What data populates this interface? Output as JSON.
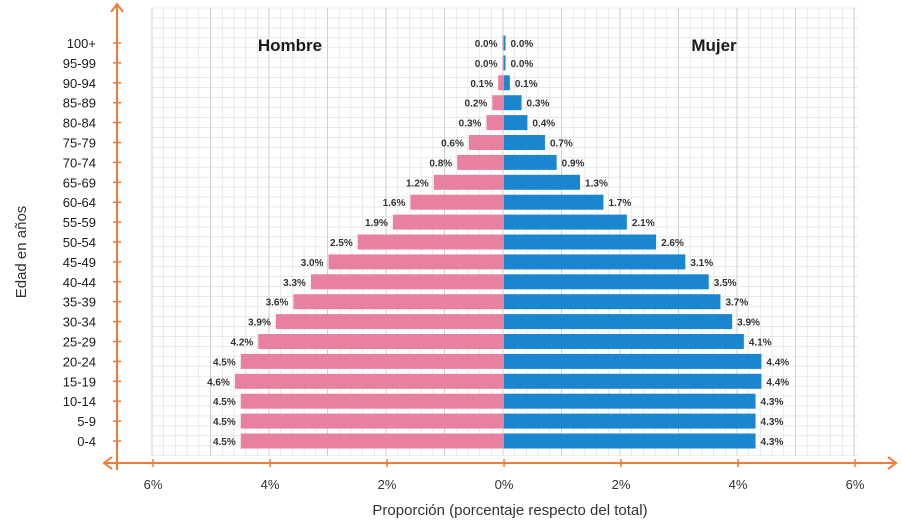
{
  "chart_data": {
    "type": "bar",
    "orientation": "horizontal",
    "layout": "population-pyramid",
    "categories": [
      "100+",
      "95-99",
      "90-94",
      "85-89",
      "80-84",
      "75-79",
      "70-74",
      "65-69",
      "60-64",
      "55-59",
      "50-54",
      "45-49",
      "40-44",
      "35-39",
      "30-34",
      "25-29",
      "20-24",
      "15-19",
      "10-14",
      "5-9",
      "0-4"
    ],
    "series": [
      {
        "name": "Hombre",
        "side": "left",
        "color": "#e8819f",
        "values": [
          0.0,
          0.0,
          0.1,
          0.2,
          0.3,
          0.6,
          0.8,
          1.2,
          1.6,
          1.9,
          2.5,
          3.0,
          3.3,
          3.6,
          3.9,
          4.2,
          4.5,
          4.6,
          4.5,
          4.5,
          4.5
        ],
        "labels": [
          "0.0%",
          "0.0%",
          "0.1%",
          "0.2%",
          "0.3%",
          "0.6%",
          "0.8%",
          "1.2%",
          "1.6%",
          "1.9%",
          "2.5%",
          "3.0%",
          "3.3%",
          "3.6%",
          "3.9%",
          "4.2%",
          "4.5%",
          "4.6%",
          "4.5%",
          "4.5%",
          "4.5%"
        ]
      },
      {
        "name": "Mujer",
        "side": "right",
        "color": "#1a86d0",
        "values": [
          0.0,
          0.0,
          0.1,
          0.3,
          0.4,
          0.7,
          0.9,
          1.3,
          1.7,
          2.1,
          2.6,
          3.1,
          3.5,
          3.7,
          3.9,
          4.1,
          4.4,
          4.4,
          4.3,
          4.3,
          4.3
        ],
        "labels": [
          "0.0%",
          "0.0%",
          "0.1%",
          "0.3%",
          "0.4%",
          "0.7%",
          "0.9%",
          "1.3%",
          "1.7%",
          "2.1%",
          "2.6%",
          "3.1%",
          "3.5%",
          "3.7%",
          "3.9%",
          "4.1%",
          "4.4%",
          "4.4%",
          "4.3%",
          "4.3%",
          "4.3%"
        ]
      }
    ],
    "x_ticks": [
      "6%",
      "4%",
      "2%",
      "0%",
      "2%",
      "4%",
      "6%"
    ],
    "xlim": [
      -6,
      6
    ],
    "xlabel": "Proporción (porcentaje respecto del total)",
    "ylabel": "Edad en años",
    "grid": true,
    "axis_color": "#f07a3a",
    "grid_color": "#dcdcdc"
  }
}
